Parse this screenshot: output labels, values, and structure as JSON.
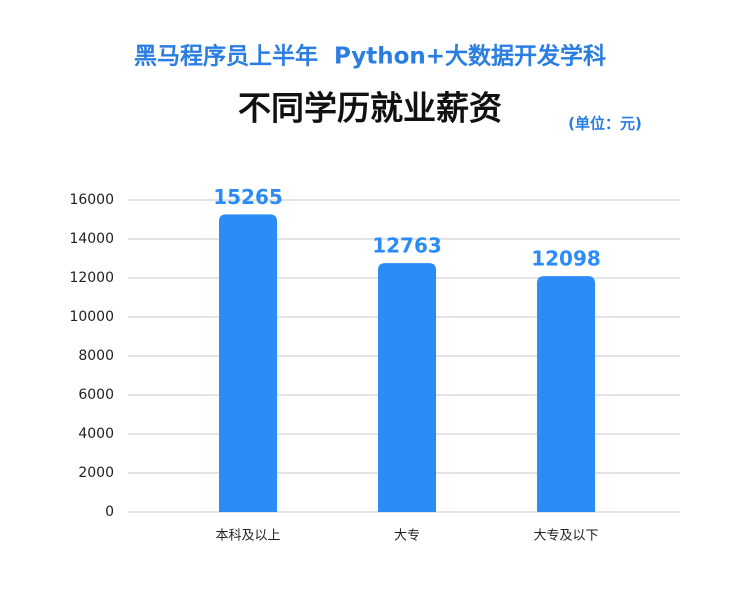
{
  "chart_data": {
    "type": "bar",
    "title": "黑马程序员上半年  Python+大数据开发学科",
    "subtitle": "不同学历就业薪资",
    "unit": "(单位：元)",
    "categories": [
      "本科及以上",
      "大专",
      "大专及以下"
    ],
    "values": [
      15265,
      12763,
      12098
    ],
    "color": "#2b8cf7",
    "ylim": [
      0,
      16000
    ],
    "yticks": [
      0,
      2000,
      4000,
      6000,
      8000,
      10000,
      12000,
      14000,
      16000
    ],
    "grid": true
  }
}
